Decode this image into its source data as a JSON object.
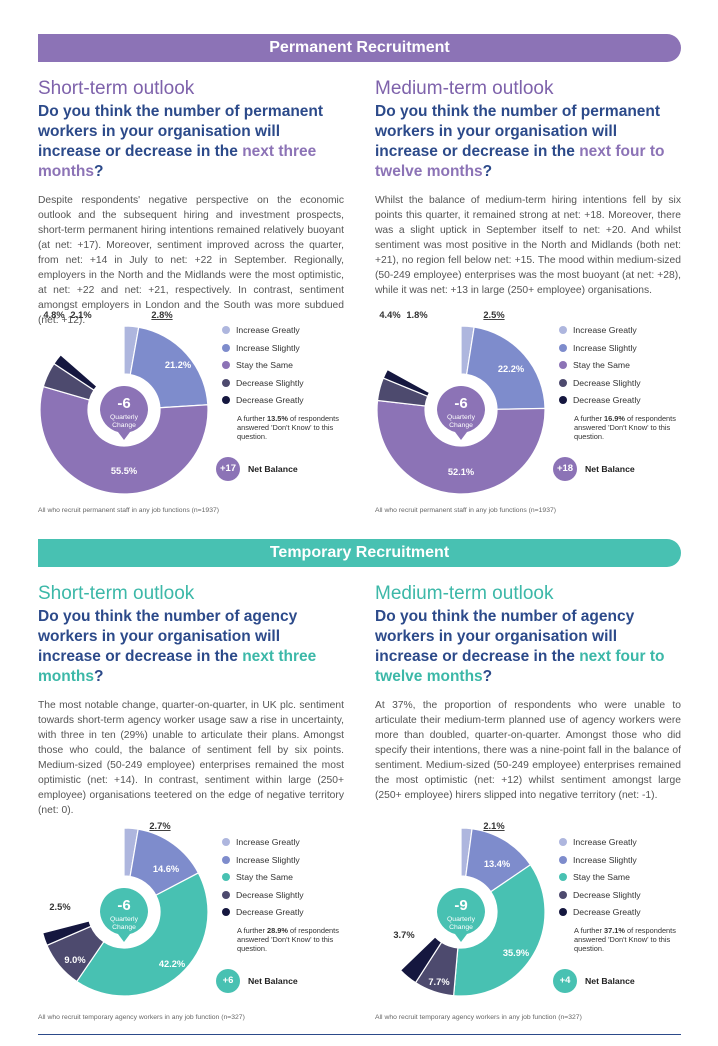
{
  "permanent": {
    "banner": "Permanent Recruitment",
    "short": {
      "outlook": "Short-term outlook",
      "q_pre": "Do you think the number of permanent workers in your organisation will increase or decrease in the",
      "q_hl": "next three months",
      "q_post": "?",
      "para": "Despite respondents' negative perspective on the economic outlook and the subsequent hiring and investment prospects, short-term permanent hiring intentions remained relatively buoyant (at net: +17). Moreover, sentiment improved across the quarter, from net: +14 in July to net: +22 in September. Regionally, employers in the North and the Midlands were the most optimistic, at net: +22 and net: +21, respectively. In contrast, sentiment amongst employers in London and the South was more subdued (net: +12).",
      "base": "All who recruit permanent staff in any job functions (n=1937)"
    },
    "medium": {
      "outlook": "Medium-term outlook",
      "q_pre": "Do you think the number of permanent workers in your organisation will increase or decrease in the",
      "q_hl": "next four to twelve months",
      "q_post": "?",
      "para": "Whilst the balance of medium-term hiring intentions fell by six points this quarter, it remained strong at net: +18. Moreover, there was a slight uptick in September itself to net: +20. And whilst sentiment was most positive in the North and Midlands (both net: +21), no region fell below net: +15. The mood within medium-sized (50-249 employee) enterprises was the most buoyant (at net: +28), while it was net: +13 in large (250+ employee) organisations.",
      "base": "All who recruit permanent staff in any job functions (n=1937)"
    }
  },
  "temporary": {
    "banner": "Temporary Recruitment",
    "short": {
      "outlook": "Short-term outlook",
      "q_pre": "Do you think the number of agency workers in your organisation will increase or decrease in the",
      "q_hl": "next three months",
      "q_post": "?",
      "para": "The most notable change, quarter-on-quarter, in UK plc. sentiment towards short-term agency worker usage saw a rise in uncertainty, with three in ten (29%) unable to articulate their plans. Amongst those who could, the balance of sentiment fell by six points. Medium-sized (50-249 employee) enterprises remained the most optimistic (net: +14). In contrast, sentiment within large (250+ employee) organisations teetered on the edge of negative territory (net: 0).",
      "base": "All who recruit temporary agency workers in any job function (n=327)"
    },
    "medium": {
      "outlook": "Medium-term outlook",
      "q_pre": "Do you think the number of agency workers in your organisation will increase or decrease in the",
      "q_hl": "next four to twelve months",
      "q_post": "?",
      "para": "At 37%, the proportion of respondents who were unable to articulate their medium-term planned use of agency workers were more than doubled, quarter-on-quarter. Amongst those who did specify their intentions, there was a nine-point fall in the balance of sentiment. Medium-sized (50-249 employee) enterprises remained the most optimistic (net: +12) whilst sentiment amongst large (250+ employee) hirers slipped into negative territory (net: -1).",
      "base": "All who recruit temporary agency workers in any job function (n=327)"
    }
  },
  "legend": [
    "Increase Greatly",
    "Increase Slightly",
    "Stay the Same",
    "Decrease Slightly",
    "Decrease Greatly"
  ],
  "center_sub": [
    "Quarterly",
    "Change"
  ],
  "note_pre": "A further",
  "note_post": "of respondents answered 'Don't Know' to this question.",
  "net_label": "Net Balance",
  "colors": {
    "increase_greatly": "#aeb6de",
    "increase_slightly": "#7e8ccc",
    "stay_same_perm": "#8c73b6",
    "stay_same_temp": "#48c1b2",
    "decrease_slightly": "#4d4a6e",
    "decrease_greatly": "#15173f"
  },
  "chart_data": [
    {
      "type": "pie",
      "title": "Permanent short-term",
      "categories": [
        "Increase Greatly",
        "Increase Slightly",
        "Stay the Same",
        "Decrease Slightly",
        "Decrease Greatly"
      ],
      "values": [
        2.8,
        21.2,
        55.5,
        4.8,
        2.1
      ],
      "labels": [
        "2.8%",
        "21.2%",
        "55.5%",
        "4.8%",
        "2.1%"
      ],
      "center": "-6",
      "dont_know": "13.5%",
      "net": "+17"
    },
    {
      "type": "pie",
      "title": "Permanent medium-term",
      "categories": [
        "Increase Greatly",
        "Increase Slightly",
        "Stay the Same",
        "Decrease Slightly",
        "Decrease Greatly"
      ],
      "values": [
        2.5,
        22.2,
        52.1,
        4.4,
        1.8
      ],
      "labels": [
        "2.5%",
        "22.2%",
        "52.1%",
        "4.4%",
        "1.8%"
      ],
      "center": "-6",
      "dont_know": "16.9%",
      "net": "+18"
    },
    {
      "type": "pie",
      "title": "Temporary short-term",
      "categories": [
        "Increase Greatly",
        "Increase Slightly",
        "Stay the Same",
        "Decrease Slightly",
        "Decrease Greatly"
      ],
      "values": [
        2.7,
        14.6,
        42.2,
        9.0,
        2.5
      ],
      "labels": [
        "2.7%",
        "14.6%",
        "42.2%",
        "9.0%",
        "2.5%"
      ],
      "center": "-6",
      "dont_know": "28.9%",
      "net": "+6"
    },
    {
      "type": "pie",
      "title": "Temporary medium-term",
      "categories": [
        "Increase Greatly",
        "Increase Slightly",
        "Stay the Same",
        "Decrease Slightly",
        "Decrease Greatly"
      ],
      "values": [
        2.1,
        13.4,
        35.9,
        7.7,
        3.7
      ],
      "labels": [
        "2.1%",
        "13.4%",
        "35.9%",
        "7.7%",
        "3.7%"
      ],
      "center": "-9",
      "dont_know": "37.1%",
      "net": "+4"
    }
  ]
}
